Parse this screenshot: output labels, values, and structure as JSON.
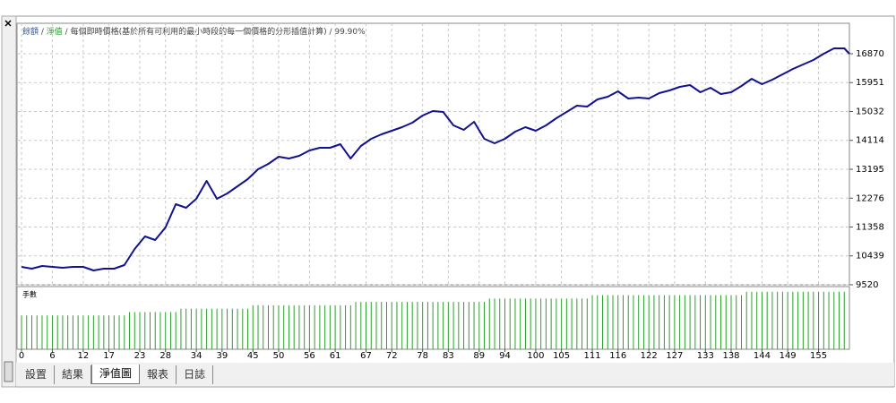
{
  "header": {
    "balance_label": "餘額",
    "balance_color": "#3b5aa0",
    "equity_label": "淨值",
    "equity_color": "#2e9a2e",
    "separator": " / ",
    "description": "每個即時價格(基於所有可利用的最小時段的每一個價格的分形插值計算)",
    "modeling_quality": "99.90%"
  },
  "chart_data": [
    {
      "type": "line",
      "grid": true,
      "x": [
        0,
        2,
        4,
        6,
        8,
        10,
        12,
        14,
        16,
        18,
        20,
        22,
        24,
        26,
        28,
        30,
        32,
        34,
        36,
        38,
        40,
        42,
        44,
        46,
        48,
        50,
        52,
        54,
        56,
        58,
        60,
        62,
        64,
        66,
        68,
        70,
        72,
        74,
        76,
        78,
        80,
        82,
        84,
        86,
        88,
        90,
        92,
        94,
        96,
        98,
        100,
        102,
        104,
        106,
        108,
        110,
        112,
        114,
        116,
        118,
        120,
        122,
        124,
        126,
        128,
        130,
        132,
        134,
        136,
        138,
        140,
        142,
        144,
        146,
        148,
        150,
        152,
        154,
        156,
        158,
        160,
        161
      ],
      "series": [
        {
          "name": "餘額",
          "color": "#12128f",
          "values": [
            10089,
            10032,
            10118,
            10089,
            10061,
            10089,
            10089,
            9975,
            10032,
            10032,
            10146,
            10659,
            11058,
            10944,
            11343,
            12084,
            11970,
            12255,
            12824,
            12255,
            12426,
            12653,
            12881,
            13195,
            13366,
            13594,
            13537,
            13622,
            13793,
            13879,
            13879,
            13993,
            13537,
            13936,
            14163,
            14306,
            14420,
            14534,
            14676,
            14904,
            15047,
            15018,
            14591,
            14448,
            14705,
            14163,
            14021,
            14163,
            14391,
            14534,
            14420,
            14591,
            14819,
            15018,
            15218,
            15189,
            15417,
            15502,
            15673,
            15445,
            15474,
            15445,
            15616,
            15702,
            15816,
            15873,
            15645,
            15787,
            15588,
            15645,
            15844,
            16072,
            15901,
            16044,
            16215,
            16386,
            16528,
            16671,
            16870,
            17041,
            17041,
            16870
          ]
        }
      ],
      "xlim": [
        -0.7,
        161
      ],
      "xticks": [
        0,
        6,
        12,
        17,
        23,
        28,
        34,
        39,
        45,
        50,
        56,
        61,
        67,
        72,
        78,
        83,
        89,
        94,
        100,
        105,
        111,
        116,
        122,
        127,
        133,
        138,
        144,
        149,
        155
      ],
      "ylim": [
        9520,
        17838
      ],
      "yticks": [
        9520,
        10439,
        11358,
        12276,
        13195,
        14114,
        15032,
        15951,
        16870
      ]
    },
    {
      "type": "bar",
      "label": "手數",
      "color": "#2ca02c",
      "values": [
        0.1,
        0.1,
        0.1,
        0.1,
        0.1,
        0.1,
        0.1,
        0.1,
        0.1,
        0.1,
        0.1,
        0.1,
        0.1,
        0.1,
        0.1,
        0.1,
        0.1,
        0.1,
        0.1,
        0.1,
        0.1,
        0.11,
        0.11,
        0.11,
        0.11,
        0.11,
        0.11,
        0.11,
        0.11,
        0.11,
        0.11,
        0.12,
        0.12,
        0.12,
        0.12,
        0.12,
        0.12,
        0.12,
        0.12,
        0.12,
        0.12,
        0.12,
        0.12,
        0.12,
        0.12,
        0.13,
        0.13,
        0.13,
        0.13,
        0.13,
        0.13,
        0.13,
        0.13,
        0.13,
        0.13,
        0.13,
        0.13,
        0.13,
        0.13,
        0.13,
        0.13,
        0.13,
        0.13,
        0.13,
        0.13,
        0.14,
        0.14,
        0.14,
        0.14,
        0.14,
        0.14,
        0.14,
        0.14,
        0.14,
        0.14,
        0.14,
        0.14,
        0.14,
        0.14,
        0.14,
        0.14,
        0.14,
        0.14,
        0.14,
        0.14,
        0.14,
        0.14,
        0.14,
        0.14,
        0.14,
        0.14,
        0.15,
        0.15,
        0.15,
        0.15,
        0.15,
        0.15,
        0.15,
        0.15,
        0.15,
        0.15,
        0.15,
        0.15,
        0.15,
        0.15,
        0.15,
        0.15,
        0.15,
        0.15,
        0.15,
        0.15,
        0.16,
        0.16,
        0.16,
        0.16,
        0.16,
        0.16,
        0.16,
        0.16,
        0.16,
        0.16,
        0.16,
        0.16,
        0.16,
        0.16,
        0.16,
        0.16,
        0.16,
        0.16,
        0.16,
        0.16,
        0.16,
        0.16,
        0.16,
        0.16,
        0.16,
        0.16,
        0.16,
        0.16,
        0.16,
        0.16,
        0.17,
        0.17,
        0.17,
        0.17,
        0.17,
        0.17,
        0.17,
        0.17,
        0.17,
        0.17,
        0.17,
        0.17,
        0.17,
        0.17,
        0.17,
        0.17,
        0.17,
        0.17,
        0.17,
        0.17
      ],
      "ylim": [
        0,
        0.18
      ]
    }
  ],
  "tabs": [
    "設置",
    "結果",
    "淨值圖",
    "報表",
    "日誌"
  ]
}
